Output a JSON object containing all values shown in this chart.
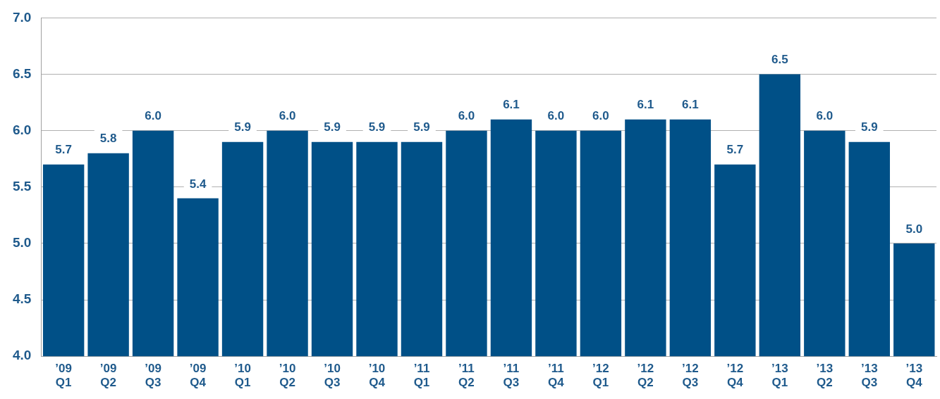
{
  "chart_data": {
    "type": "bar",
    "categories": [
      "’09 Q1",
      "’09 Q2",
      "’09 Q3",
      "’09 Q4",
      "’10 Q1",
      "’10 Q2",
      "’10 Q3",
      "’10 Q4",
      "’11 Q1",
      "’11 Q2",
      "’11 Q3",
      "’11 Q4",
      "’12 Q1",
      "’12 Q2",
      "’12 Q3",
      "’12 Q4",
      "’13 Q1",
      "’13 Q2",
      "’13 Q3",
      "’13 Q4"
    ],
    "values": [
      5.7,
      5.8,
      6.0,
      5.4,
      5.9,
      6.0,
      5.9,
      5.9,
      5.9,
      6.0,
      6.1,
      6.0,
      6.0,
      6.1,
      6.1,
      5.7,
      6.5,
      6.0,
      5.9,
      5.0
    ],
    "color": "#005087",
    "ylim": [
      4.0,
      7.0
    ],
    "yticks": [
      {
        "value": 4.0,
        "label": "4.0"
      },
      {
        "value": 4.5,
        "label": "4.5"
      },
      {
        "value": 5.0,
        "label": "5.0"
      },
      {
        "value": 5.5,
        "label": "5.5"
      },
      {
        "value": 6.0,
        "label": "6.0"
      },
      {
        "value": 6.5,
        "label": "6.5"
      },
      {
        "value": 7.0,
        "label": "7.0"
      }
    ],
    "grid": "y",
    "value_labels": [
      "5.7",
      "5.8",
      "6.0",
      "5.4",
      "5.9",
      "6.0",
      "5.9",
      "5.9",
      "5.9",
      "6.0",
      "6.1",
      "6.0",
      "6.0",
      "6.1",
      "6.1",
      "5.7",
      "6.5",
      "6.0",
      "5.9",
      "5.0"
    ]
  }
}
